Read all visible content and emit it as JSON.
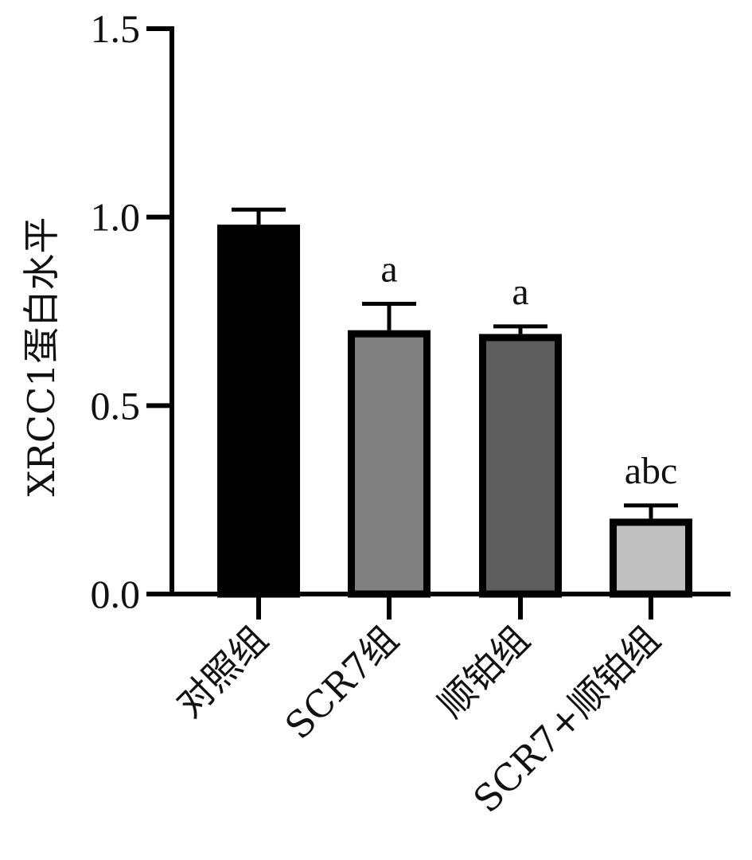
{
  "chart_data": {
    "type": "bar",
    "title": "",
    "xlabel": "",
    "ylabel": "XRCC1蛋白水平",
    "ylim": [
      0,
      1.5
    ],
    "yticks": [
      "0.0",
      "0.5",
      "1.0",
      "1.5"
    ],
    "yticks_values": [
      0,
      0.5,
      1.0,
      1.5
    ],
    "categories": [
      "对照组",
      "SCR7组",
      "顺铂组",
      "SCR7+顺铂组"
    ],
    "values": [
      0.98,
      0.7,
      0.69,
      0.2
    ],
    "error_upper": [
      0.04,
      0.07,
      0.02,
      0.035
    ],
    "annotations": [
      "",
      "a",
      "a",
      "abc"
    ],
    "colors": [
      "#000000",
      "#808080",
      "#5e5e5e",
      "#c0c0c0"
    ],
    "edge_color": "#000000",
    "grid": false,
    "legend": "none"
  }
}
